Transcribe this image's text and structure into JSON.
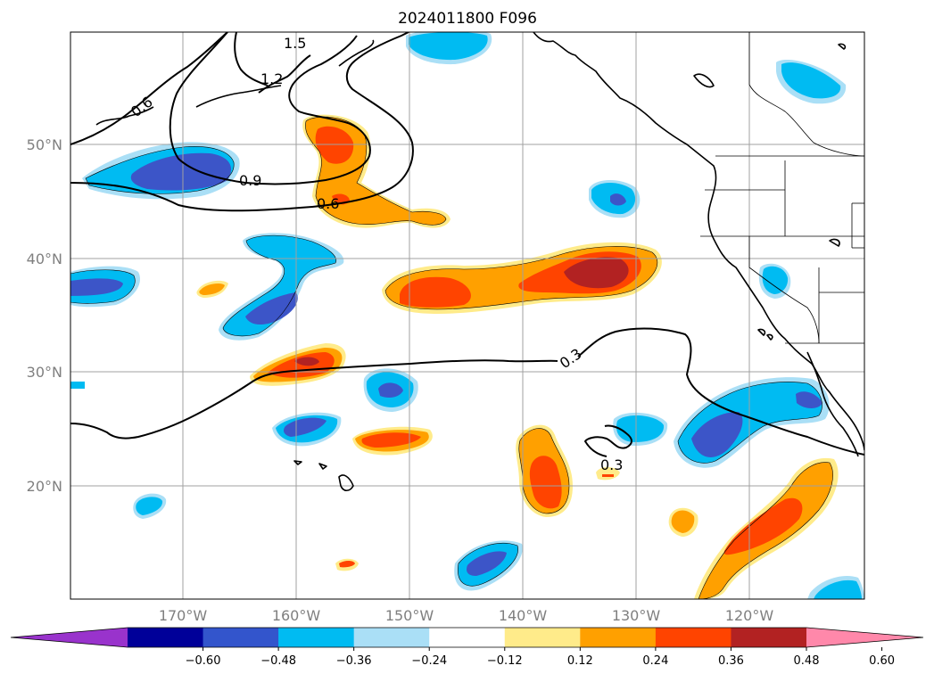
{
  "title": "2024011800 F096",
  "map": {
    "lat_labels": [
      "50°N",
      "40°N",
      "30°N",
      "20°N"
    ],
    "lon_labels": [
      "170°W",
      "160°W",
      "150°W",
      "140°W",
      "130°W",
      "120°W"
    ]
  },
  "contour_labels": [
    "1.5",
    "1.2",
    "0.6",
    "0.9",
    "0.6",
    "0.3",
    "0.3"
  ],
  "colorbar": {
    "tick_labels": [
      "−0.60",
      "−0.48",
      "−0.36",
      "−0.24",
      "−0.12",
      "0.12",
      "0.24",
      "0.36",
      "0.48",
      "0.60"
    ],
    "colors": [
      "#9933cc",
      "#000099",
      "#3355cc",
      "#00bbf2",
      "#aadff6",
      "#ffffff",
      "#ffeb8a",
      "#ffa000",
      "#ff4400",
      "#b22222",
      "#ff88aa"
    ]
  },
  "colors": {
    "dark_blue": "#3c55c8",
    "med_blue": "#00bbf2",
    "light_blue": "#aadff6",
    "light_yellow": "#ffeb8a",
    "orange": "#ffa000",
    "red_orange": "#ff4400",
    "dark_red": "#b22222"
  }
}
